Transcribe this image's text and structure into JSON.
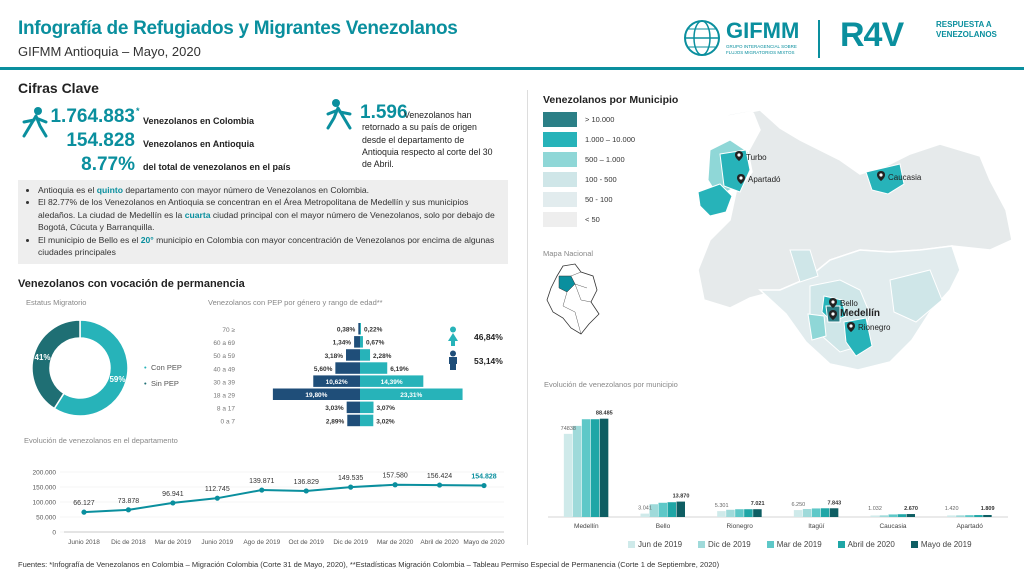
{
  "header": {
    "title": "Infografía de Refugiados y Migrantes Venezolanos",
    "subtitle": "GIFMM Antioquia – Mayo, 2020",
    "logo_gifmm_text": "GIFMM",
    "logo_gifmm_sub": "GRUPO INTERAGENCIAL SOBRE FLUJOS MIGRATORIOS MIXTOS",
    "logo_r4v_text": "R4V",
    "logo_r4v_sub1": "RESPUESTA A",
    "logo_r4v_sub2": "VENEZOLANOS",
    "colors": {
      "accent": "#0a8f9e"
    }
  },
  "cifras": {
    "title": "Cifras Clave",
    "colombia_num": "1.764.883",
    "colombia_mark": "*",
    "colombia_label": "Venezolanos en Colombia",
    "antioquia_num": "154.828",
    "antioquia_label": "Venezolanos en Antioquia",
    "pct_num": "8.77%",
    "pct_label": "del total de venezolanos en el país",
    "returned_num": "1.596",
    "returned_text": "Venezolanos han retornado a su país de origen desde el departamento de Antioquia respecto al corte del 30 de Abril.",
    "icon_person": "walking-person-icon"
  },
  "bullets": [
    {
      "pre": "Antioquia es el ",
      "hl": "quinto",
      "post": " departamento con mayor número de Venezolanos en Colombia."
    },
    {
      "pre": "El 82.77% de los Venezolanos en Antioquia se concentran en el Área Metropolitana de Medellín y sus municipios aledaños. La ciudad de Medellín es la ",
      "hl": "cuarta",
      "post": " ciudad principal con el mayor número de Venezolanos, solo por debajo de Bogotá, Cúcuta y Barranquilla."
    },
    {
      "pre": "El municipio de Bello es el ",
      "hl": "20°",
      "post": " municipio en Colombia con mayor concentración de Venezolanos por encima de algunas ciudades principales"
    }
  ],
  "permanencia": {
    "title": "Venezolanos con vocación de permanencia",
    "estatus_label": "Estatus Migratorio",
    "piramide_label": "Venezolanos con PEP por género y rango de edad**",
    "female_pct": "46,84%",
    "male_pct": "53,14%"
  },
  "map": {
    "title": "Venezolanos por Municipio",
    "legend": [
      {
        "label": "> 10.000",
        "color": "#2b7f86"
      },
      {
        "label": "1.000 – 10.000",
        "color": "#27b3b9"
      },
      {
        "label": "500 – 1.000",
        "color": "#8fd7d7"
      },
      {
        "label": "100 - 500",
        "color": "#cfe6e8"
      },
      {
        "label": "50 - 100",
        "color": "#e2ecee"
      },
      {
        "label": "< 50",
        "color": "#eeeeee"
      }
    ],
    "mapa_nacional": "Mapa Nacional",
    "places": [
      "Turbo",
      "Apartadó",
      "Caucasia",
      "Bello",
      "Medellín",
      "Rionegro"
    ]
  },
  "chart_data": [
    {
      "type": "pie",
      "title": "Estatus Migratorio",
      "categories": [
        "Con PEP",
        "Sin PEP"
      ],
      "values": [
        59,
        41
      ],
      "labels": [
        "59%",
        "41%"
      ],
      "colors": [
        "#27b3b9",
        "#1f6f74"
      ]
    },
    {
      "type": "bar",
      "title": "Venezolanos con PEP por género y rango de edad**",
      "categories": [
        "70 ≥",
        "60 a 69",
        "50 a 59",
        "40 a 49",
        "30 a 39",
        "18 a 29",
        "8 a 17",
        "0 a 7"
      ],
      "series": [
        {
          "name": "Mujeres",
          "values": [
            0.38,
            1.34,
            3.18,
            5.6,
            10.62,
            19.8,
            3.03,
            2.89
          ],
          "labels": [
            "0,38%",
            "1,34%",
            "3,18%",
            "5,60%",
            "10,62%",
            "19,80%",
            "3,03%",
            "2,89%"
          ],
          "color": "#1f4e79"
        },
        {
          "name": "Hombres",
          "values": [
            0.22,
            0.67,
            2.28,
            6.19,
            14.39,
            23.31,
            3.07,
            3.02
          ],
          "labels": [
            "0,22%",
            "0,67%",
            "2,28%",
            "6,19%",
            "14,39%",
            "23,31%",
            "3,07%",
            "3,02%"
          ],
          "color": "#27b3b9"
        }
      ]
    },
    {
      "type": "line",
      "title": "Evolución de venezolanos en el departamento",
      "categories": [
        "Junio 2018",
        "Dic de 2018",
        "Mar de 2019",
        "Junio 2019",
        "Ago de 2019",
        "Oct de 2019",
        "Dic de 2019",
        "Mar de 2020",
        "Abril de 2020",
        "Mayo de 2020"
      ],
      "values": [
        66127,
        73878,
        96941,
        112745,
        139871,
        136829,
        149535,
        157580,
        156424,
        154828
      ],
      "labels": [
        "66.127",
        "73.878",
        "96.941",
        "112.745",
        "139.871",
        "136.829",
        "149.535",
        "157.580",
        "156.424",
        "154.828"
      ],
      "yticks": [
        "0",
        "50.000",
        "100.000",
        "150.000",
        "200.000"
      ],
      "ylim": [
        0,
        200000
      ]
    },
    {
      "type": "bar",
      "title": "Evolución de venezolanos por municipio",
      "categories": [
        "Medellín",
        "Bello",
        "Rionegro",
        "Itagüí",
        "Caucasia",
        "Apartadó"
      ],
      "series": [
        {
          "name": "Jun de 2019",
          "values": [
            74838,
            3041,
            5301,
            6250,
            1032,
            1420
          ],
          "color": "#cfeaea"
        },
        {
          "name": "Dic de 2019",
          "values": [
            82000,
            11500,
            6500,
            7200,
            1500,
            1500
          ],
          "color": "#9fdada"
        },
        {
          "name": "Mar de 2019",
          "values": [
            88000,
            12800,
            7000,
            7700,
            2300,
            1650
          ],
          "color": "#5ec8c8"
        },
        {
          "name": "Abril de 2020",
          "values": [
            88000,
            13300,
            7000,
            7850,
            2500,
            1750
          ],
          "color": "#1fa6a6"
        },
        {
          "name": "Mayo de 2019",
          "values": [
            88485,
            13870,
            7021,
            7843,
            2670,
            1809
          ],
          "color": "#0e5e63"
        }
      ],
      "labels_first": [
        "74838",
        "3.041",
        "5.301",
        "6.250",
        "1.032",
        "1.420"
      ],
      "labels_last": [
        "88.485",
        "13.870",
        "7.021",
        "7.843",
        "2.670",
        "1.809"
      ]
    }
  ],
  "footer": "Fuentes: *Infografía de Venezolanos en Colombia – Migración Colombia (Corte 31 de Mayo, 2020), **Estadísticas Migración Colombia – Tableau Permiso Especial de Permanencia (Corte 1 de Septiembre, 2020)"
}
